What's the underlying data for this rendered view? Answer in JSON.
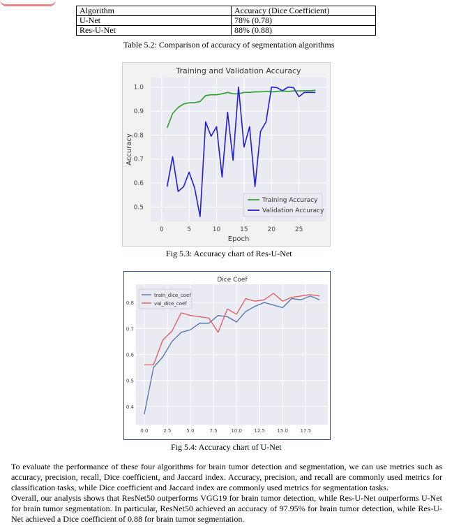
{
  "table": {
    "header": [
      "Algorithm",
      "Accuracy (Dice Coefficient)"
    ],
    "rows": [
      [
        "U-Net",
        "78% (0.78)"
      ],
      [
        "Res-U-Net",
        "88% (0.88)"
      ]
    ],
    "caption": "Table 5.2: Comparison of accuracy of segmentation algorithms"
  },
  "chart_data": [
    {
      "type": "line",
      "title": "Training and Validation Accuracy",
      "xlabel": "Epoch",
      "ylabel": "Accuracy",
      "xticks": [
        "0",
        "5",
        "10",
        "15",
        "20",
        "25"
      ],
      "yticks": [
        "0.5",
        "0.6",
        "0.7",
        "0.8",
        "0.9",
        "1.0"
      ],
      "xlim": [
        -2,
        30
      ],
      "ylim": [
        0.44,
        1.04
      ],
      "grid": true,
      "legend": "lower-right",
      "x": [
        1,
        2,
        3,
        4,
        5,
        6,
        7,
        8,
        9,
        10,
        11,
        12,
        13,
        14,
        15,
        16,
        17,
        18,
        19,
        20,
        21,
        22,
        23,
        24,
        25,
        26,
        27,
        28
      ],
      "series": [
        {
          "name": "Training Accuracy",
          "color": "#2ca02c",
          "values": [
            0.83,
            0.89,
            0.915,
            0.93,
            0.935,
            0.935,
            0.94,
            0.965,
            0.968,
            0.968,
            0.972,
            0.978,
            0.972,
            0.972,
            0.978,
            0.978,
            0.98,
            0.98,
            0.982,
            0.98,
            0.982,
            0.984,
            0.982,
            0.984,
            0.984,
            0.985,
            0.985,
            0.987
          ]
        },
        {
          "name": "Validation Accuracy",
          "color": "#1f1fd6",
          "values": [
            0.585,
            0.71,
            0.565,
            0.585,
            0.645,
            0.58,
            0.46,
            0.855,
            0.795,
            0.835,
            0.625,
            0.895,
            0.695,
            1.0,
            0.75,
            0.835,
            0.585,
            0.815,
            0.855,
            1.0,
            0.998,
            0.985,
            1.0,
            0.998,
            0.96,
            0.978,
            0.978,
            0.978
          ]
        }
      ],
      "caption": "Fig 5.3: Accuracy chart of Res-U-Net"
    },
    {
      "type": "line",
      "title": "Dice Coef",
      "xlabel": "",
      "ylabel": "",
      "xticks": [
        "0.0",
        "2.5",
        "5.0",
        "7.5",
        "10.0",
        "12.5",
        "15.0",
        "17.5"
      ],
      "yticks": [
        "0.4",
        "0.5",
        "0.6",
        "0.7",
        "0.8"
      ],
      "xlim": [
        -0.9,
        19.9
      ],
      "ylim": [
        0.33,
        0.87
      ],
      "grid": true,
      "legend": "upper-left",
      "x": [
        0,
        1,
        2,
        3,
        4,
        5,
        6,
        7,
        8,
        9,
        10,
        11,
        12,
        13,
        14,
        15,
        16,
        17,
        18,
        19
      ],
      "series": [
        {
          "name": "train_dice_coef",
          "color": "#4c72b0",
          "values": [
            0.37,
            0.55,
            0.59,
            0.65,
            0.685,
            0.695,
            0.72,
            0.72,
            0.75,
            0.745,
            0.725,
            0.765,
            0.785,
            0.8,
            0.79,
            0.78,
            0.815,
            0.81,
            0.825,
            0.81
          ]
        },
        {
          "name": "val_dice_coef",
          "color": "#e05a60",
          "values": [
            0.56,
            0.56,
            0.655,
            0.69,
            0.76,
            0.75,
            0.745,
            0.74,
            0.685,
            0.775,
            0.755,
            0.815,
            0.805,
            0.81,
            0.835,
            0.805,
            0.82,
            0.825,
            0.83,
            0.825
          ]
        }
      ],
      "caption": "Fig 5.4: Accuracy chart of U-Net"
    }
  ],
  "paragraphs": [
    "To evaluate the performance of these four algorithms for brain tumor detection and segmentation, we can use metrics such as accuracy, precision, recall, Dice coefficient, and Jaccard index. Accuracy, precision, and recall are commonly used metrics for classification tasks, while Dice coefficient and Jaccard index are commonly used metrics for segmentation tasks.",
    "Overall, our analysis shows that ResNet50 outperforms VGG19 for brain tumor detection, while Res-U-Net outperforms U-Net for brain tumor segmentation. In particular, ResNet50 achieved an accuracy of 97.95% for brain tumor detection, while Res-U-Net achieved a Dice coefficient of 0.88 for brain tumor segmentation."
  ]
}
